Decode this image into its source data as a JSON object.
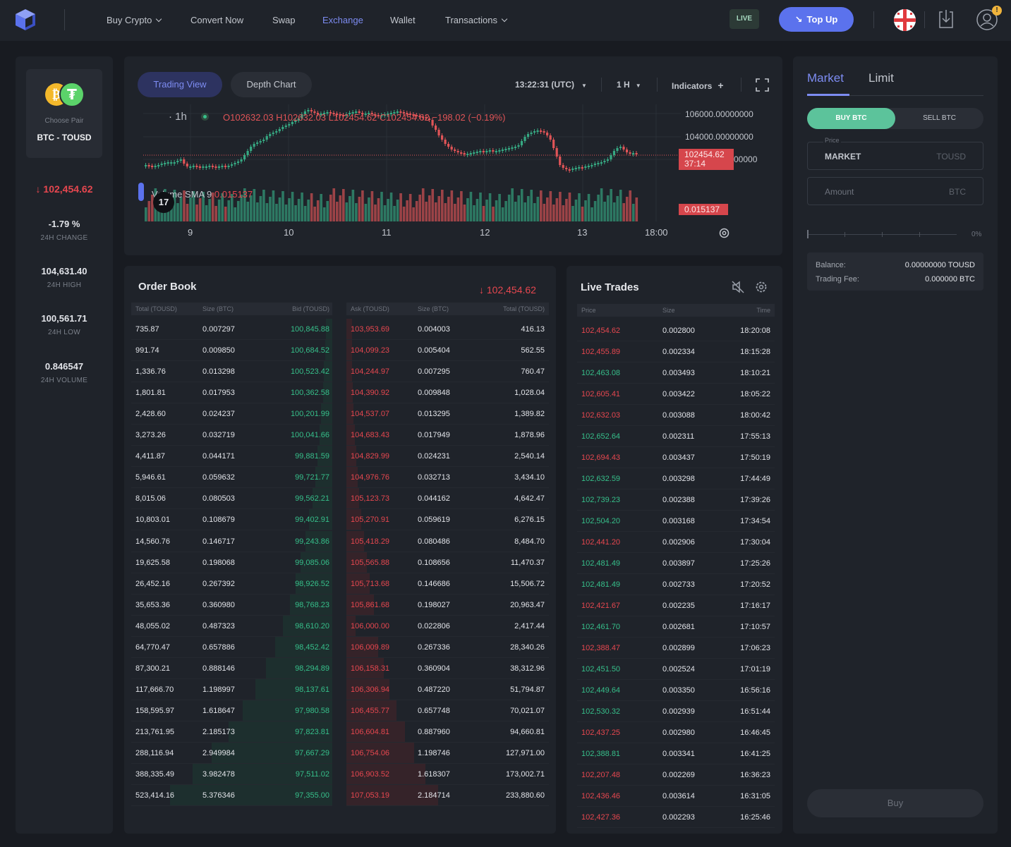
{
  "nav": {
    "items": [
      "Buy Crypto",
      "Convert Now",
      "Swap",
      "Exchange",
      "Wallet",
      "Transactions"
    ],
    "live_label": "LIVE",
    "topup_label": "Top Up",
    "notif_count": "!"
  },
  "pair": {
    "choose_label": "Choose Pair",
    "name": "BTC - TOUSD",
    "price": "102,454.62",
    "change": "-1.79 %",
    "change_label": "24H CHANGE",
    "high": "104,631.40",
    "high_label": "24H HIGH",
    "low": "100,561.71",
    "low_label": "24H LOW",
    "volume": "0.846547",
    "volume_label": "24H VOLUME"
  },
  "chart": {
    "tab_trading": "Trading View",
    "tab_depth": "Depth Chart",
    "time": "13:22:31 (UTC)",
    "interval": "1 H",
    "indicators": "Indicators",
    "legend_interval": "· 1h",
    "ohlc": "O102632.03 H102632.03 L102454.62 C102454.62 −198.02 (−0.19%)",
    "volume_legend": "Volume SMA 9",
    "volume_value": "0.015137",
    "price_ticks": [
      "106000.00000000",
      "104000.00000000",
      "00000"
    ],
    "last_price": "102454.62",
    "countdown": "37:14",
    "vol_tag": "0.015137",
    "x_ticks": [
      "9",
      "10",
      "11",
      "12",
      "13",
      "18:00"
    ],
    "candles_color": {
      "up": "#36a882",
      "down": "#e05457"
    }
  },
  "orderbook": {
    "title": "Order Book",
    "price": "102,454.62",
    "bid_headers": [
      "Total (TOUSD)",
      "Size (BTC)",
      "Bid (TOUSD)"
    ],
    "ask_headers": [
      "Ask (TOUSD)",
      "Size (BTC)",
      "Total (TOUSD)"
    ],
    "bids": [
      [
        "735.87",
        "0.007297",
        "100,845.88"
      ],
      [
        "991.74",
        "0.009850",
        "100,684.52"
      ],
      [
        "1,336.76",
        "0.013298",
        "100,523.42"
      ],
      [
        "1,801.81",
        "0.017953",
        "100,362.58"
      ],
      [
        "2,428.60",
        "0.024237",
        "100,201.99"
      ],
      [
        "3,273.26",
        "0.032719",
        "100,041.66"
      ],
      [
        "4,411.87",
        "0.044171",
        "99,881.59"
      ],
      [
        "5,946.61",
        "0.059632",
        "99,721.77"
      ],
      [
        "8,015.06",
        "0.080503",
        "99,562.21"
      ],
      [
        "10,803.01",
        "0.108679",
        "99,402.91"
      ],
      [
        "14,560.76",
        "0.146717",
        "99,243.86"
      ],
      [
        "19,625.58",
        "0.198068",
        "99,085.06"
      ],
      [
        "26,452.16",
        "0.267392",
        "98,926.52"
      ],
      [
        "35,653.36",
        "0.360980",
        "98,768.23"
      ],
      [
        "48,055.02",
        "0.487323",
        "98,610.20"
      ],
      [
        "64,770.47",
        "0.657886",
        "98,452.42"
      ],
      [
        "87,300.21",
        "0.888146",
        "98,294.89"
      ],
      [
        "117,666.70",
        "1.198997",
        "98,137.61"
      ],
      [
        "158,595.97",
        "1.618647",
        "97,980.58"
      ],
      [
        "213,761.95",
        "2.185173",
        "97,823.81"
      ],
      [
        "288,116.94",
        "2.949984",
        "97,667.29"
      ],
      [
        "388,335.49",
        "3.982478",
        "97,511.02"
      ],
      [
        "523,414.16",
        "5.376346",
        "97,355.00"
      ]
    ],
    "asks": [
      [
        "103,953.69",
        "0.004003",
        "416.13"
      ],
      [
        "104,099.23",
        "0.005404",
        "562.55"
      ],
      [
        "104,244.97",
        "0.007295",
        "760.47"
      ],
      [
        "104,390.92",
        "0.009848",
        "1,028.04"
      ],
      [
        "104,537.07",
        "0.013295",
        "1,389.82"
      ],
      [
        "104,683.43",
        "0.017949",
        "1,878.96"
      ],
      [
        "104,829.99",
        "0.024231",
        "2,540.14"
      ],
      [
        "104,976.76",
        "0.032713",
        "3,434.10"
      ],
      [
        "105,123.73",
        "0.044162",
        "4,642.47"
      ],
      [
        "105,270.91",
        "0.059619",
        "6,276.15"
      ],
      [
        "105,418.29",
        "0.080486",
        "8,484.70"
      ],
      [
        "105,565.88",
        "0.108656",
        "11,470.37"
      ],
      [
        "105,713.68",
        "0.146686",
        "15,506.72"
      ],
      [
        "105,861.68",
        "0.198027",
        "20,963.47"
      ],
      [
        "106,000.00",
        "0.022806",
        "2,417.44"
      ],
      [
        "106,009.89",
        "0.267336",
        "28,340.26"
      ],
      [
        "106,158.31",
        "0.360904",
        "38,312.96"
      ],
      [
        "106,306.94",
        "0.487220",
        "51,794.87"
      ],
      [
        "106,455.77",
        "0.657748",
        "70,021.07"
      ],
      [
        "106,604.81",
        "0.887960",
        "94,660.81"
      ],
      [
        "106,754.06",
        "1.198746",
        "127,971.00"
      ],
      [
        "106,903.52",
        "1.618307",
        "173,002.71"
      ],
      [
        "107,053.19",
        "2.184714",
        "233,880.60"
      ]
    ]
  },
  "trades": {
    "title": "Live Trades",
    "headers": [
      "Price",
      "Size",
      "Time"
    ],
    "rows": [
      [
        "102,454.62",
        "0.002800",
        "18:20:08",
        "red"
      ],
      [
        "102,455.89",
        "0.002334",
        "18:15:28",
        "red"
      ],
      [
        "102,463.08",
        "0.003493",
        "18:10:21",
        "green"
      ],
      [
        "102,605.41",
        "0.003422",
        "18:05:22",
        "red"
      ],
      [
        "102,632.03",
        "0.003088",
        "18:00:42",
        "red"
      ],
      [
        "102,652.64",
        "0.002311",
        "17:55:13",
        "green"
      ],
      [
        "102,694.43",
        "0.003437",
        "17:50:19",
        "red"
      ],
      [
        "102,632.59",
        "0.003298",
        "17:44:49",
        "green"
      ],
      [
        "102,739.23",
        "0.002388",
        "17:39:26",
        "green"
      ],
      [
        "102,504.20",
        "0.003168",
        "17:34:54",
        "green"
      ],
      [
        "102,441.20",
        "0.002906",
        "17:30:04",
        "red"
      ],
      [
        "102,481.49",
        "0.003897",
        "17:25:26",
        "green"
      ],
      [
        "102,481.49",
        "0.002733",
        "17:20:52",
        "green"
      ],
      [
        "102,421.67",
        "0.002235",
        "17:16:17",
        "red"
      ],
      [
        "102,461.70",
        "0.002681",
        "17:10:57",
        "green"
      ],
      [
        "102,388.47",
        "0.002899",
        "17:06:23",
        "red"
      ],
      [
        "102,451.50",
        "0.002524",
        "17:01:19",
        "green"
      ],
      [
        "102,449.64",
        "0.003350",
        "16:56:16",
        "green"
      ],
      [
        "102,530.32",
        "0.002939",
        "16:51:44",
        "green"
      ],
      [
        "102,437.25",
        "0.002980",
        "16:46:45",
        "red"
      ],
      [
        "102,388.81",
        "0.003341",
        "16:41:25",
        "green"
      ],
      [
        "102,207.48",
        "0.002269",
        "16:36:23",
        "red"
      ],
      [
        "102,436.46",
        "0.003614",
        "16:31:05",
        "red"
      ],
      [
        "102,427.36",
        "0.002293",
        "16:25:46",
        "red"
      ]
    ]
  },
  "order_form": {
    "tab_market": "Market",
    "tab_limit": "Limit",
    "buy_label": "BUY BTC",
    "sell_label": "SELL BTC",
    "price_label": "Price",
    "price_value": "MARKET",
    "price_unit": "TOUSD",
    "amount_placeholder": "Amount",
    "amount_unit": "BTC",
    "slider_percent": "0%",
    "balance_label": "Balance:",
    "balance_value": "0.00000000 TOUSD",
    "fee_label": "Trading Fee:",
    "fee_value": "0.000000 BTC",
    "submit_label": "Buy"
  },
  "colors": {
    "accent": "#7d8cf2",
    "green": "#36bf8a",
    "red": "#e6474f",
    "buy": "#5cc39b"
  }
}
